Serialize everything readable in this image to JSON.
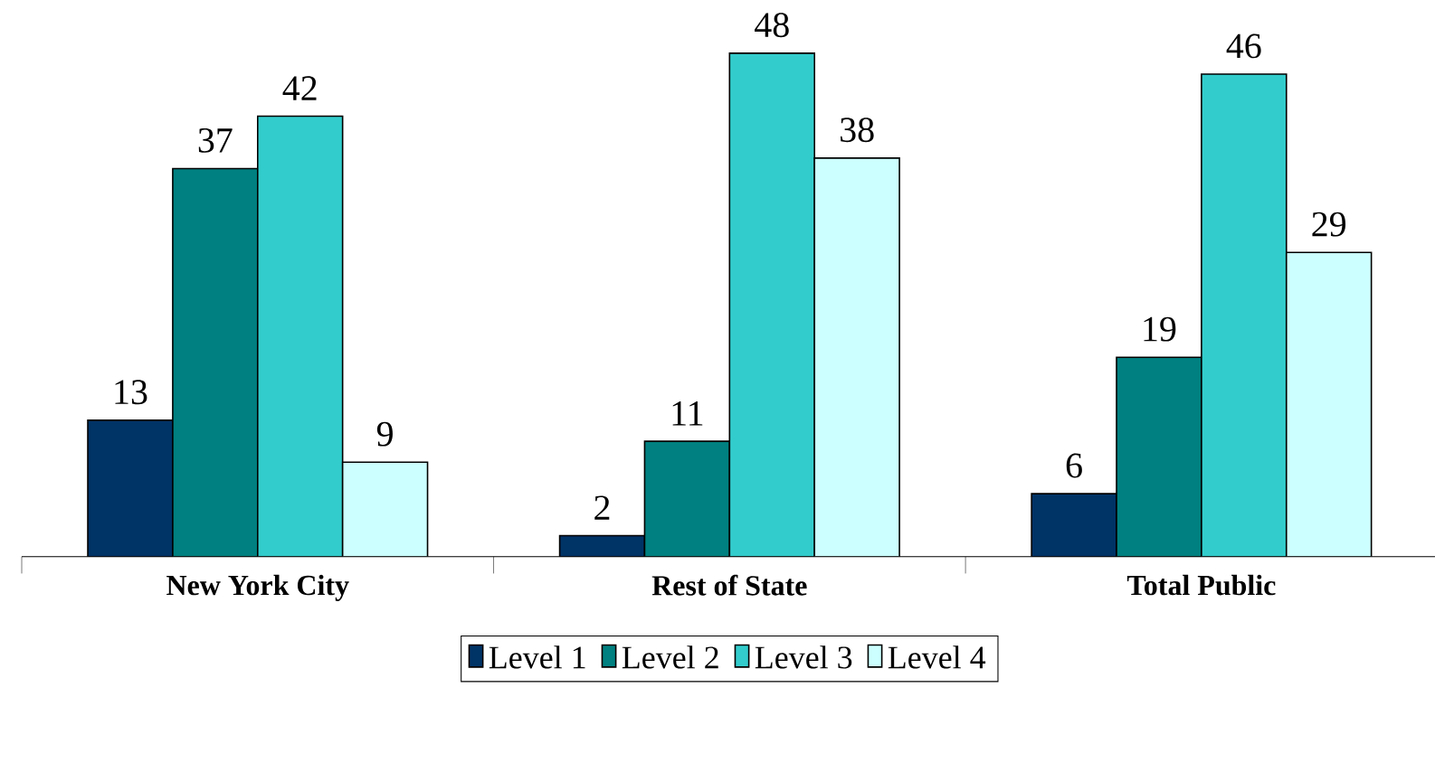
{
  "chart_data": {
    "type": "bar",
    "categories": [
      "New York City",
      "Rest of State",
      "Total Public"
    ],
    "series": [
      {
        "name": "Level 1",
        "color": "#003366",
        "values": [
          13,
          2,
          6
        ]
      },
      {
        "name": "Level 2",
        "color": "#008080",
        "values": [
          37,
          11,
          19
        ]
      },
      {
        "name": "Level 3",
        "color": "#33cccc",
        "values": [
          42,
          48,
          46
        ]
      },
      {
        "name": "Level 4",
        "color": "#ccffff",
        "values": [
          9,
          38,
          29
        ]
      }
    ],
    "data_labels": true,
    "legend": "bottom"
  }
}
